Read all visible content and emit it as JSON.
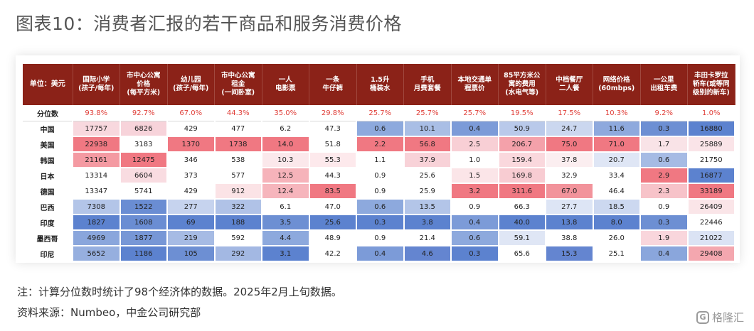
{
  "title": "图表10：消费者汇报的若干商品和服务消费价格",
  "table": {
    "corner": "单位：美元",
    "columns": [
      "国际小学\n(孩子/每年)",
      "市中心公寓\n价格\n(每平方米)",
      "幼儿园\n(孩子/每年)",
      "市中心公寓\n租金\n(一间卧室)",
      "一人\n电影票",
      "一条\n牛仔裤",
      "1.5升\n桶装水",
      "手机\n月费套餐",
      "本地交通单\n程票价",
      "85平方米公\n寓的费用\n(水电气等)",
      "中档餐厅\n二人餐",
      "网络价格\n(60mbps)",
      "一公里\n出租车费",
      "丰田卡罗拉\n轿车(或等同\n级别的新车)"
    ],
    "percentile": {
      "label": "分位数",
      "values": [
        "93.8%",
        "92.7%",
        "67.0%",
        "44.3%",
        "35.0%",
        "29.8%",
        "25.7%",
        "25.7%",
        "25.7%",
        "19.5%",
        "17.5%",
        "10.3%",
        "9.2%",
        "1.0%"
      ]
    },
    "rows": [
      {
        "name": "中国",
        "values": [
          "17757",
          "6826",
          "429",
          "477",
          "6.2",
          "47.3",
          "0.6",
          "10.1",
          "0.4",
          "50.9",
          "24.7",
          "11.6",
          "0.3",
          "16880"
        ],
        "colors": [
          "#f8d8de",
          "#f7d3da",
          "#ffffff",
          "#ffffff",
          "#ffffff",
          "#ffffff",
          "#8da9dd",
          "#a9bee5",
          "#7c9bd8",
          "#b9c9ea",
          "#cbd7ef",
          "#8ea9dd",
          "#6d8fd3",
          "#5c82cf"
        ]
      },
      {
        "name": "美国",
        "values": [
          "22938",
          "3183",
          "1370",
          "1738",
          "14.0",
          "51.8",
          "2.2",
          "56.8",
          "2.5",
          "206.7",
          "75.0",
          "71.0",
          "1.7",
          "25889"
        ],
        "colors": [
          "#f07882",
          "#ffffff",
          "#f07882",
          "#f07882",
          "#f07882",
          "#ffffff",
          "#f07882",
          "#f07882",
          "#f8cfd5",
          "#f4a1aa",
          "#f07882",
          "#f07882",
          "#f9e3e7",
          "#fae4e8"
        ]
      },
      {
        "name": "韩国",
        "values": [
          "21161",
          "12475",
          "346",
          "538",
          "10.3",
          "55.3",
          "1.1",
          "37.9",
          "1.0",
          "159.4",
          "37.8",
          "20.7",
          "0.6",
          "21750"
        ],
        "colors": [
          "#f49aa2",
          "#f07882",
          "#ffffff",
          "#ffffff",
          "#fbe8eb",
          "#fde9ec",
          "#ffffff",
          "#f8d2d8",
          "#ffffff",
          "#fad8dd",
          "#fbeef0",
          "#dfe6f5",
          "#a6bbe4",
          "#ffffff"
        ]
      },
      {
        "name": "日本",
        "values": [
          "13314",
          "6604",
          "373",
          "577",
          "12.5",
          "44.3",
          "0.9",
          "25.6",
          "1.5",
          "169.8",
          "32.9",
          "33.4",
          "2.9",
          "16877"
        ],
        "colors": [
          "#ffffff",
          "#f9dce1",
          "#ffffff",
          "#ffffff",
          "#f6b3ba",
          "#ffffff",
          "#ffffff",
          "#ffffff",
          "#fbe5e8",
          "#f8ccd2",
          "#ffffff",
          "#ffffff",
          "#f07882",
          "#5c82cf"
        ]
      },
      {
        "name": "德国",
        "values": [
          "13347",
          "5741",
          "429",
          "912",
          "12.4",
          "83.5",
          "0.9",
          "25.9",
          "3.2",
          "311.6",
          "67.0",
          "46.4",
          "2.3",
          "33189"
        ],
        "colors": [
          "#ffffff",
          "#ffffff",
          "#ffffff",
          "#fbe3e6",
          "#f6b5bc",
          "#f07882",
          "#ffffff",
          "#ffffff",
          "#f07882",
          "#f07882",
          "#f2939b",
          "#ffffff",
          "#f7c3c9",
          "#f07882"
        ]
      },
      {
        "name": "巴西",
        "values": [
          "7308",
          "1522",
          "277",
          "322",
          "6.1",
          "47.0",
          "0.6",
          "13.5",
          "0.9",
          "66.3",
          "27.7",
          "18.5",
          "0.9",
          "26409"
        ],
        "colors": [
          "#b3c5e8",
          "#6a8dd3",
          "#c6d3ee",
          "#b0c2e7",
          "#ffffff",
          "#ffffff",
          "#8da9dd",
          "#b3c5e8",
          "#ffffff",
          "#ffffff",
          "#dde5f5",
          "#ccd8f0",
          "#ffffff",
          "#fae5e8"
        ]
      },
      {
        "name": "印度",
        "values": [
          "1827",
          "1608",
          "69",
          "188",
          "3.5",
          "25.6",
          "0.3",
          "3.8",
          "0.4",
          "40.0",
          "13.8",
          "8.0",
          "0.3",
          "22446"
        ],
        "colors": [
          "#5c82cf",
          "#6a8dd3",
          "#5c82cf",
          "#5c82cf",
          "#6d8fd3",
          "#5c82cf",
          "#5c82cf",
          "#5c82cf",
          "#7c9bd8",
          "#5c82cf",
          "#5c82cf",
          "#5c82cf",
          "#6d8fd3",
          "#ffffff"
        ]
      },
      {
        "name": "墨西哥",
        "values": [
          "4969",
          "1877",
          "219",
          "592",
          "4.4",
          "48.9",
          "0.9",
          "21.4",
          "0.6",
          "59.1",
          "38.8",
          "26.0",
          "1.9",
          "21022"
        ],
        "colors": [
          "#8aa6dc",
          "#7797d6",
          "#a6bbe4",
          "#ffffff",
          "#8da9dd",
          "#ffffff",
          "#ffffff",
          "#ffffff",
          "#8da9dd",
          "#dfe6f5",
          "#ffffff",
          "#ffffff",
          "#f9d6dc",
          "#dbe3f4"
        ]
      },
      {
        "name": "印尼",
        "values": [
          "5652",
          "1186",
          "105",
          "292",
          "3.1",
          "42.2",
          "0.4",
          "4.6",
          "0.3",
          "65.6",
          "15.3",
          "25.1",
          "0.4",
          "29408"
        ],
        "colors": [
          "#96afdf",
          "#5c82cf",
          "#6d8fd3",
          "#a3b8e3",
          "#5c82cf",
          "#ffffff",
          "#7c9bd8",
          "#6485d0",
          "#5c82cf",
          "#ffffff",
          "#6485d0",
          "#ffffff",
          "#8aa6dc",
          "#f4a7af"
        ]
      }
    ]
  },
  "notes": {
    "note": "注：计算分位数时统计了98个经济体的数据。2025年2月上旬数据。",
    "source": "资料来源：Numbeo，中金公司研究部"
  },
  "watermark": {
    "icon": "gelonghui-logo-icon",
    "logo_glyph": "G",
    "text": "格隆汇"
  }
}
